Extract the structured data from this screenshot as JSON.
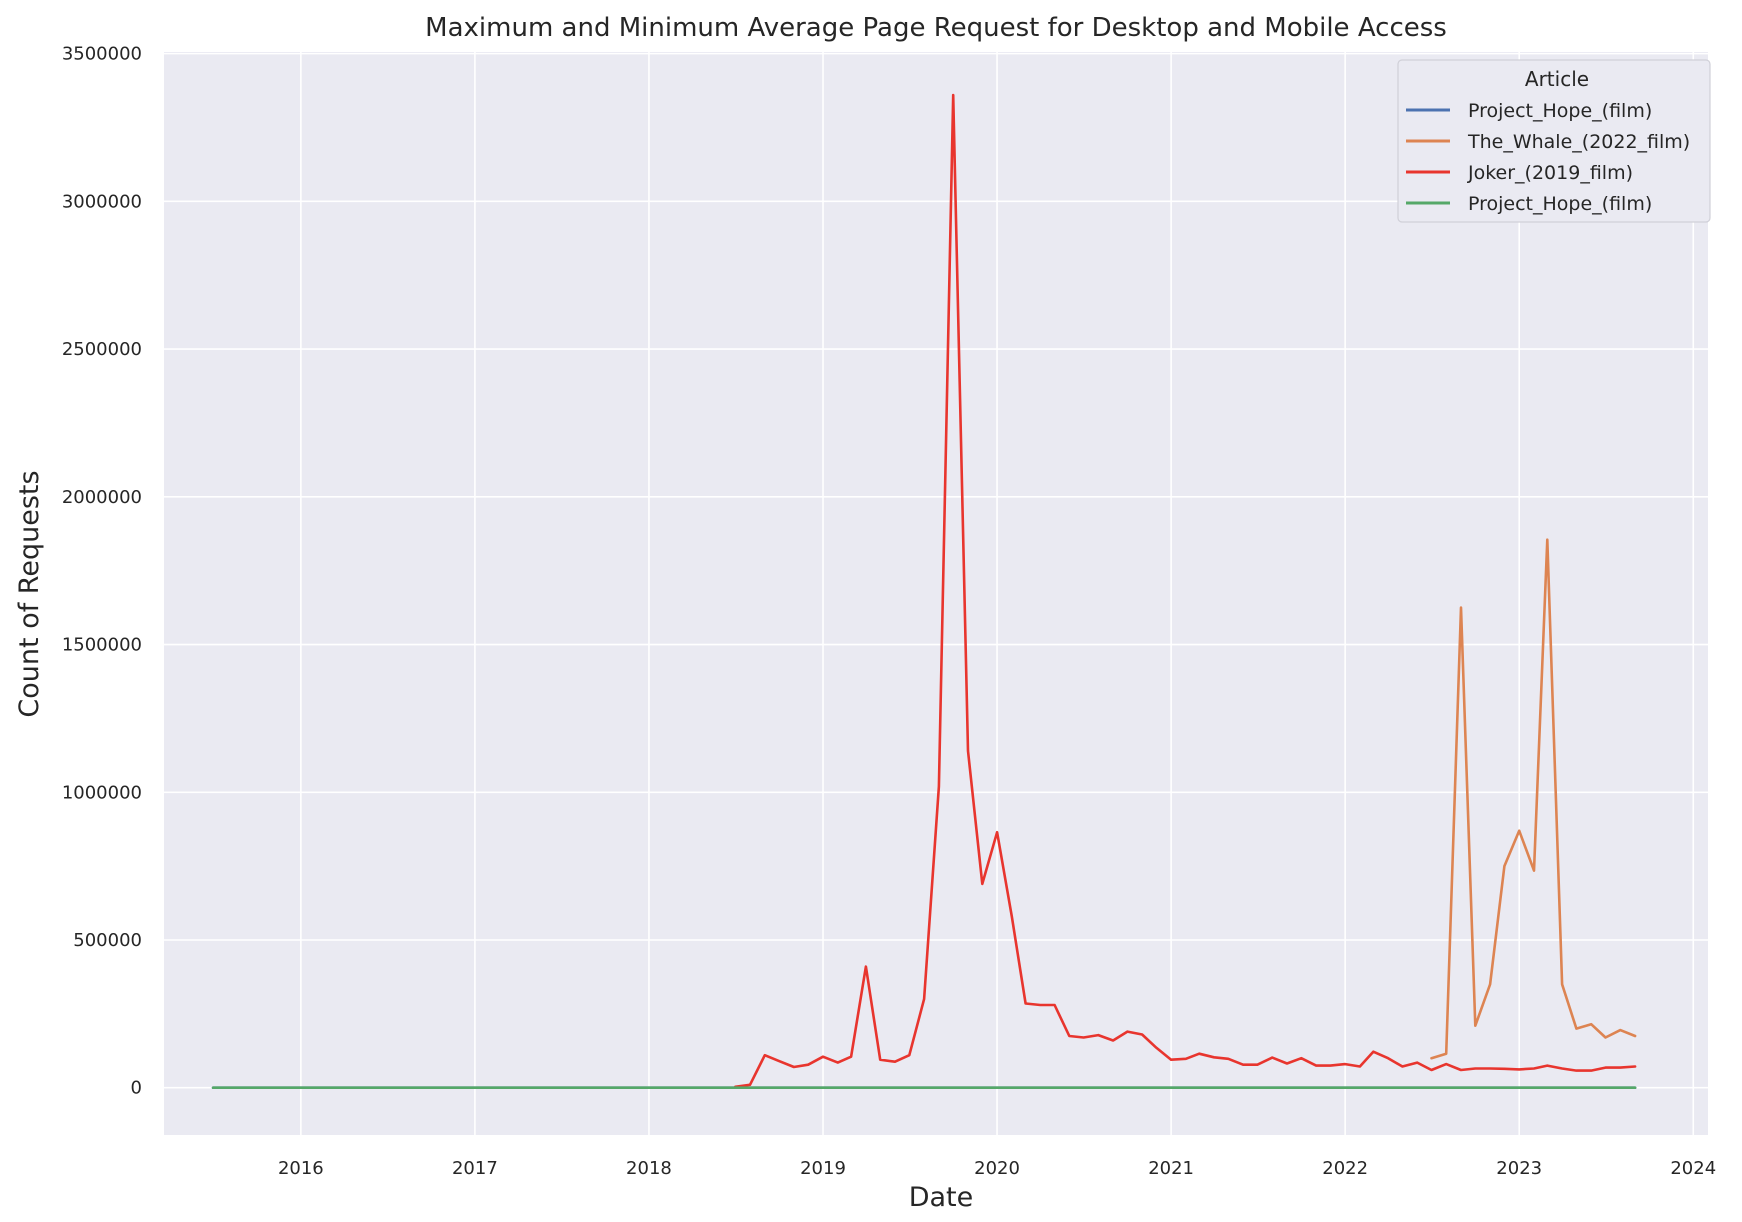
{
  "chart_data": {
    "type": "line",
    "title": "Maximum and Minimum Average Page Request for Desktop and Mobile Access",
    "xlabel": "Date",
    "ylabel": "Count of Requests",
    "x_ticks": [
      "2016",
      "2017",
      "2018",
      "2019",
      "2020",
      "2021",
      "2022",
      "2023",
      "2024"
    ],
    "y_ticks": [
      "0",
      "500000",
      "1000000",
      "1500000",
      "2000000",
      "2500000",
      "3000000",
      "3500000"
    ],
    "xlim": [
      "2015-03-20",
      "2024-02-01"
    ],
    "ylim": [
      -160000,
      3500000
    ],
    "grid": true,
    "legend": {
      "title": "Article",
      "placement": "top-right"
    },
    "background_color": "#eaeaf2",
    "series": [
      {
        "name": "Project_Hope_(film)",
        "color": "#4c72b0",
        "x": [
          "2015-07-01",
          "2023-09-01"
        ],
        "y": [
          0,
          0
        ]
      },
      {
        "name": "The_Whale_(2022_film)",
        "color": "#dd8452",
        "x": [
          "2022-07-01",
          "2022-08-01",
          "2022-09-01",
          "2022-10-01",
          "2022-11-01",
          "2022-12-01",
          "2023-01-01",
          "2023-02-01",
          "2023-03-01",
          "2023-04-01",
          "2023-05-01",
          "2023-06-01",
          "2023-07-01",
          "2023-08-01",
          "2023-09-01"
        ],
        "y": [
          100000,
          115000,
          1625000,
          210000,
          350000,
          750000,
          870000,
          735000,
          1855000,
          350000,
          200000,
          215000,
          170000,
          195000,
          175000
        ]
      },
      {
        "name": "Joker_(2019_film)",
        "color": "#e8352e",
        "x": [
          "2018-07-01",
          "2018-08-01",
          "2018-09-01",
          "2018-10-01",
          "2018-11-01",
          "2018-12-01",
          "2019-01-01",
          "2019-02-01",
          "2019-03-01",
          "2019-04-01",
          "2019-05-01",
          "2019-06-01",
          "2019-07-01",
          "2019-08-01",
          "2019-09-01",
          "2019-10-01",
          "2019-11-01",
          "2019-12-01",
          "2020-01-01",
          "2020-02-01",
          "2020-03-01",
          "2020-04-01",
          "2020-05-01",
          "2020-06-01",
          "2020-07-01",
          "2020-08-01",
          "2020-09-01",
          "2020-10-01",
          "2020-11-01",
          "2020-12-01",
          "2021-01-01",
          "2021-02-01",
          "2021-03-01",
          "2021-04-01",
          "2021-05-01",
          "2021-06-01",
          "2021-07-01",
          "2021-08-01",
          "2021-09-01",
          "2021-10-01",
          "2021-11-01",
          "2021-12-01",
          "2022-01-01",
          "2022-02-01",
          "2022-03-01",
          "2022-04-01",
          "2022-05-01",
          "2022-06-01",
          "2022-07-01",
          "2022-08-01",
          "2022-09-01",
          "2022-10-01",
          "2022-11-01",
          "2022-12-01",
          "2023-01-01",
          "2023-02-01",
          "2023-03-01",
          "2023-04-01",
          "2023-05-01",
          "2023-06-01",
          "2023-07-01",
          "2023-08-01",
          "2023-09-01"
        ],
        "y": [
          3000,
          10000,
          110000,
          90000,
          70000,
          78000,
          105000,
          85000,
          105000,
          410000,
          95000,
          88000,
          110000,
          300000,
          1020000,
          3360000,
          1140000,
          690000,
          865000,
          580000,
          285000,
          280000,
          280000,
          175000,
          170000,
          178000,
          160000,
          190000,
          180000,
          135000,
          95000,
          98000,
          115000,
          103000,
          98000,
          78000,
          78000,
          102000,
          82000,
          100000,
          75000,
          75000,
          80000,
          72000,
          122000,
          100000,
          72000,
          85000,
          60000,
          80000,
          60000,
          65000,
          65000,
          64000,
          62000,
          65000,
          75000,
          65000,
          58000,
          58000,
          68000,
          68000,
          72000
        ]
      },
      {
        "name": "Project_Hope_(film)",
        "color": "#55a868",
        "x": [
          "2015-07-01",
          "2023-09-01"
        ],
        "y": [
          0,
          0
        ]
      }
    ]
  }
}
